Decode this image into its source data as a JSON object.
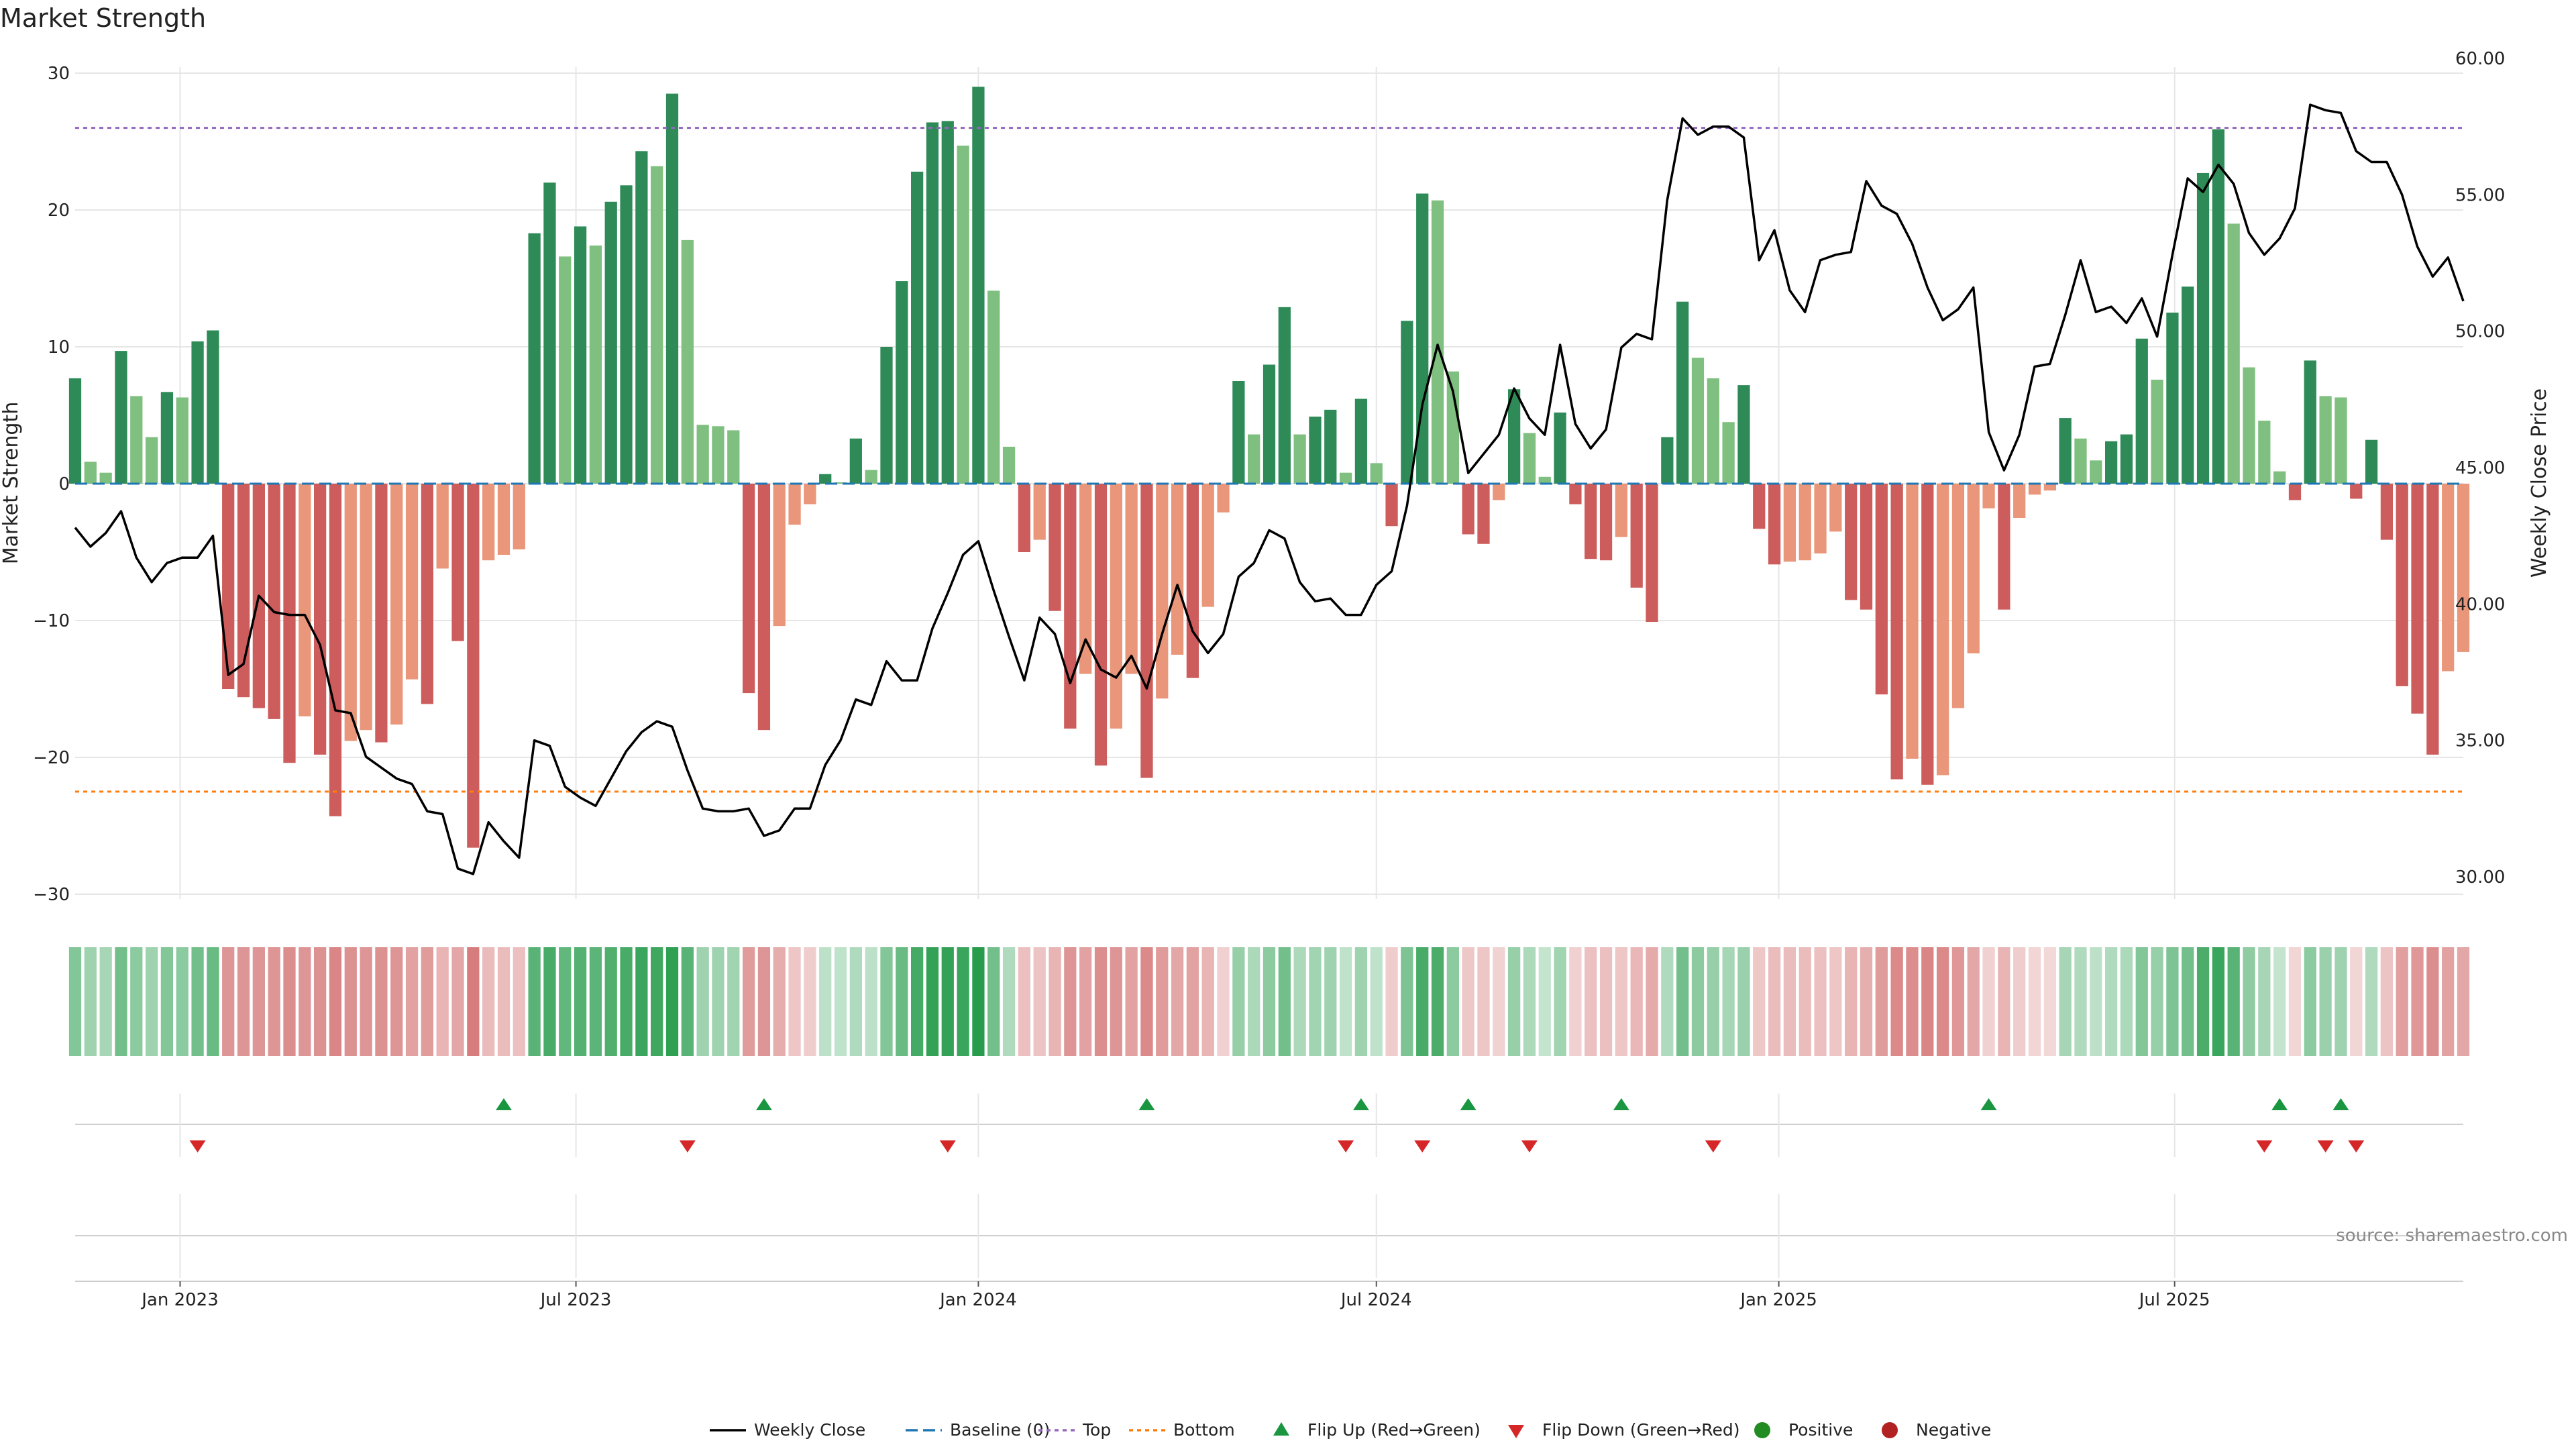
{
  "chart_data": {
    "type": "bar",
    "title": "Market Strength",
    "ylabel": "Market Strength",
    "y2label": "Weekly Close Price",
    "ylim": [
      -31,
      31
    ],
    "y2lim": [
      28.5,
      60.5
    ],
    "yticks": [
      30,
      20,
      10,
      0,
      -10,
      -20,
      -30
    ],
    "yticks_labels": [
      "30",
      "20",
      "10",
      "0",
      "−10",
      "−20",
      "−30"
    ],
    "y2ticks": [
      60,
      55,
      50,
      45,
      40,
      35,
      30
    ],
    "y2ticks_labels": [
      "60.00",
      "55.00",
      "50.00",
      "45.00",
      "40.00",
      "35.00",
      "30.00"
    ],
    "x_start": "2022-11-14",
    "x_end": "2025-11-10",
    "xticks": [
      {
        "date": "2023-01-01",
        "label": "Jan 2023"
      },
      {
        "date": "2023-07-01",
        "label": "Jul 2023"
      },
      {
        "date": "2024-01-01",
        "label": "Jan 2024"
      },
      {
        "date": "2024-07-01",
        "label": "Jul 2024"
      },
      {
        "date": "2025-01-01",
        "label": "Jan 2025"
      },
      {
        "date": "2025-07-01",
        "label": "Jul 2025"
      }
    ],
    "top_line": 26,
    "bottom_line": -22.5,
    "baseline": 0,
    "strength": [
      7.7,
      1.6,
      0.8,
      9.7,
      6.4,
      3.4,
      6.7,
      6.3,
      10.4,
      11.2,
      -15,
      -15.6,
      -16.4,
      -17.2,
      -20.4,
      -17,
      -19.8,
      -24.3,
      -18.8,
      -18,
      -18.9,
      -17.6,
      -14.3,
      -16.1,
      -6.2,
      -11.5,
      -26.6,
      -5.6,
      -5.2,
      -4.8,
      18.3,
      22,
      16.6,
      18.8,
      17.4,
      20.6,
      21.8,
      24.3,
      23.2,
      28.5,
      17.8,
      4.3,
      4.2,
      3.9,
      -15.3,
      -18,
      -10.4,
      -3,
      -1.5,
      0.7,
      0.1,
      3.3,
      1,
      10,
      14.8,
      22.8,
      26.4,
      26.5,
      24.7,
      29,
      14.1,
      2.7,
      -5,
      -4.1,
      -9.3,
      -17.9,
      -13.9,
      -20.6,
      -17.9,
      -13.9,
      -21.5,
      -15.7,
      -12.5,
      -14.2,
      -9,
      -2.1,
      7.5,
      3.6,
      8.7,
      12.9,
      3.6,
      4.9,
      5.4,
      0.8,
      6.2,
      1.5,
      -3.1,
      11.9,
      21.2,
      20.7,
      8.2,
      -3.7,
      -4.4,
      -1.2,
      6.9,
      3.7,
      0.5,
      5.2,
      -1.5,
      -5.5,
      -5.6,
      -3.9,
      -7.6,
      -10.1,
      3.4,
      13.3,
      9.2,
      7.7,
      4.5,
      7.2,
      -3.3,
      -5.9,
      -5.7,
      -5.6,
      -5.1,
      -3.5,
      -8.5,
      -9.2,
      -15.4,
      -21.6,
      -20.1,
      -22,
      -21.3,
      -16.4,
      -12.4,
      -1.8,
      -9.2,
      -2.5,
      -0.8,
      -0.5,
      4.8,
      3.3,
      1.7,
      3.1,
      3.6,
      10.6,
      7.6,
      12.5,
      14.4,
      22.7,
      25.9,
      19,
      8.5,
      4.6,
      0.9,
      -1.2,
      9,
      6.4,
      6.3,
      -1.1,
      3.2,
      -4.1,
      -14.8,
      -16.8,
      -19.8,
      -13.7,
      -12.3
    ],
    "close": [
      42.8,
      42.1,
      42.6,
      43.4,
      41.7,
      40.8,
      41.5,
      41.7,
      41.7,
      42.5,
      37.4,
      37.8,
      40.3,
      39.7,
      39.6,
      39.6,
      38.5,
      36.1,
      36.0,
      34.4,
      34.0,
      33.6,
      33.4,
      32.4,
      32.3,
      30.3,
      30.1,
      32.0,
      31.3,
      30.7,
      35.0,
      34.8,
      33.3,
      32.9,
      32.6,
      33.6,
      34.6,
      35.3,
      35.7,
      35.5,
      33.9,
      32.5,
      32.4,
      32.4,
      32.5,
      31.5,
      31.7,
      32.5,
      32.5,
      34.1,
      35.0,
      36.5,
      36.3,
      37.9,
      37.2,
      37.2,
      39.1,
      40.4,
      41.8,
      42.3,
      40.5,
      38.8,
      37.2,
      39.5,
      38.9,
      37.1,
      38.7,
      37.6,
      37.3,
      38.1,
      36.9,
      38.9,
      40.7,
      39.0,
      38.2,
      38.9,
      41.0,
      41.5,
      42.7,
      42.4,
      40.8,
      40.1,
      40.2,
      39.6,
      39.6,
      40.7,
      41.2,
      43.6,
      47.3,
      49.5,
      47.8,
      44.8,
      45.5,
      46.2,
      47.9,
      46.8,
      46.2,
      49.5,
      46.6,
      45.7,
      46.4,
      49.4,
      49.9,
      49.7,
      54.8,
      57.8,
      57.2,
      57.5,
      57.5,
      57.1,
      52.6,
      53.7,
      51.5,
      50.7,
      52.6,
      52.8,
      52.9,
      55.5,
      54.6,
      54.3,
      53.2,
      51.6,
      50.4,
      50.8,
      51.6,
      46.3,
      44.9,
      46.2,
      48.7,
      48.8,
      50.6,
      52.6,
      50.7,
      50.9,
      50.3,
      51.2,
      49.8,
      52.8,
      55.6,
      55.1,
      56.1,
      55.4,
      53.6,
      52.8,
      53.4,
      54.5,
      58.3,
      58.1,
      58.0,
      56.6,
      56.2,
      56.2,
      55.0,
      53.1,
      52.0,
      52.7,
      51.1
    ],
    "shade_strength": [
      0.45,
      0.3,
      0.25,
      0.55,
      0.4,
      0.3,
      0.45,
      0.4,
      0.55,
      0.6,
      0.6,
      0.6,
      0.6,
      0.6,
      0.65,
      0.6,
      0.62,
      0.72,
      0.62,
      0.6,
      0.62,
      0.6,
      0.5,
      0.55,
      0.35,
      0.45,
      0.8,
      0.3,
      0.28,
      0.25,
      0.7,
      0.8,
      0.65,
      0.72,
      0.68,
      0.75,
      0.8,
      0.88,
      0.85,
      0.95,
      0.7,
      0.3,
      0.3,
      0.28,
      0.55,
      0.6,
      0.4,
      0.2,
      0.15,
      0.12,
      0.1,
      0.2,
      0.12,
      0.45,
      0.6,
      0.82,
      0.92,
      0.92,
      0.88,
      0.98,
      0.55,
      0.2,
      0.25,
      0.22,
      0.35,
      0.6,
      0.5,
      0.65,
      0.6,
      0.5,
      0.7,
      0.55,
      0.45,
      0.5,
      0.35,
      0.12,
      0.35,
      0.22,
      0.4,
      0.55,
      0.22,
      0.28,
      0.3,
      0.1,
      0.3,
      0.1,
      0.15,
      0.5,
      0.8,
      0.78,
      0.4,
      0.18,
      0.2,
      0.1,
      0.35,
      0.22,
      0.08,
      0.28,
      0.12,
      0.25,
      0.25,
      0.2,
      0.32,
      0.42,
      0.2,
      0.55,
      0.4,
      0.35,
      0.25,
      0.32,
      0.18,
      0.28,
      0.28,
      0.28,
      0.25,
      0.2,
      0.35,
      0.38,
      0.55,
      0.7,
      0.65,
      0.72,
      0.7,
      0.58,
      0.45,
      0.12,
      0.35,
      0.15,
      0.08,
      0.06,
      0.25,
      0.2,
      0.12,
      0.2,
      0.22,
      0.45,
      0.35,
      0.5,
      0.55,
      0.78,
      0.88,
      0.7,
      0.38,
      0.25,
      0.08,
      0.08,
      0.4,
      0.32,
      0.3,
      0.08,
      0.2,
      0.22,
      0.52,
      0.58,
      0.65,
      0.5,
      0.45
    ],
    "flip_up_dates": [
      "2023-05-29",
      "2023-09-25",
      "2024-03-18",
      "2024-06-24",
      "2024-08-12",
      "2024-10-21",
      "2025-04-07",
      "2025-08-18",
      "2025-09-15"
    ],
    "flip_down_dates": [
      "2023-01-09",
      "2023-08-21",
      "2023-12-18",
      "2024-06-17",
      "2024-07-22",
      "2024-09-09",
      "2024-12-02",
      "2025-08-11",
      "2025-09-08",
      "2025-09-22"
    ],
    "legend": [
      "Weekly Close",
      "Baseline (0)",
      "Top",
      "Bottom",
      "Flip Up (Red→Green)",
      "Flip Down (Green→Red)",
      "Positive",
      "Negative"
    ],
    "legend_placement": "bottom-center",
    "source": "source: sharemaestro.com",
    "colors": {
      "bar_strong_green": "#2e8b57",
      "bar_light_green": "#7fbf7f",
      "bar_strong_red": "#cd5c5c",
      "bar_light_red": "#e9967a",
      "close_line": "#000000",
      "baseline": "#1f77b4",
      "top_line": "#9467bd",
      "bottom_line": "#ff7f0e",
      "flip_up": "#1a9641",
      "flip_down": "#d62728",
      "positive": "#228b22",
      "negative": "#b22222",
      "grid": "#e6e6e6"
    }
  }
}
